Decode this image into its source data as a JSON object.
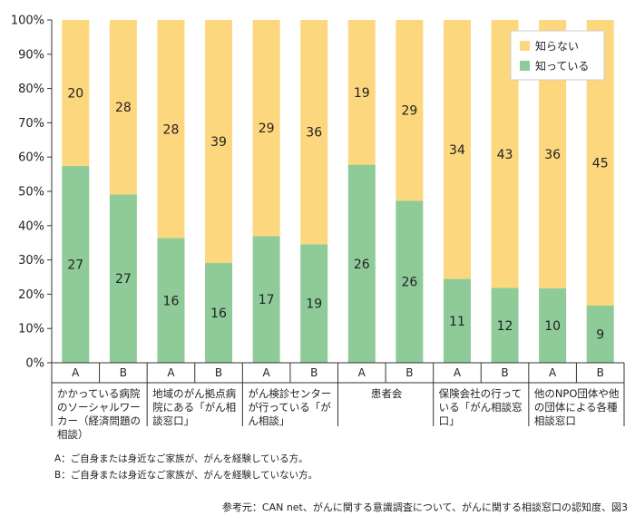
{
  "chart_data": {
    "type": "bar",
    "stacked": true,
    "percent": true,
    "y_ticks": [
      "0%",
      "10%",
      "20%",
      "30%",
      "40%",
      "50%",
      "60%",
      "70%",
      "80%",
      "90%",
      "100%"
    ],
    "ylim": [
      0,
      100
    ],
    "sub_labels": [
      "A",
      "B"
    ],
    "groups": [
      {
        "label": "かかっている病院のソーシャルワーカー（経済問題の相談）"
      },
      {
        "label": "地域のがん拠点病院にある「がん相談窓口」"
      },
      {
        "label": "がん検診センターが行っている「がん相談」"
      },
      {
        "label": "患者会"
      },
      {
        "label": "保険会社の行っている「がん相談窓口」"
      },
      {
        "label": "他のNPO団体や他の団体による各種相談窓口"
      }
    ],
    "series": [
      {
        "name": "知っている",
        "color": "#8ecb99",
        "values": [
          27,
          27,
          16,
          16,
          17,
          19,
          26,
          26,
          11,
          12,
          10,
          9
        ]
      },
      {
        "name": "知らない",
        "color": "#fdd77e",
        "values": [
          20,
          28,
          28,
          39,
          29,
          36,
          19,
          29,
          34,
          43,
          36,
          45
        ]
      }
    ],
    "legend_position": "top-right"
  },
  "footnotes": [
    "A：ご自身または身近なご家族が、がんを経験している方。",
    "B：ご自身または身近なご家族が、がんを経験していない方。"
  ],
  "source": "参考元：CAN net、がんに関する意識調査について、がんに関する相談窓口の認知度、図3"
}
